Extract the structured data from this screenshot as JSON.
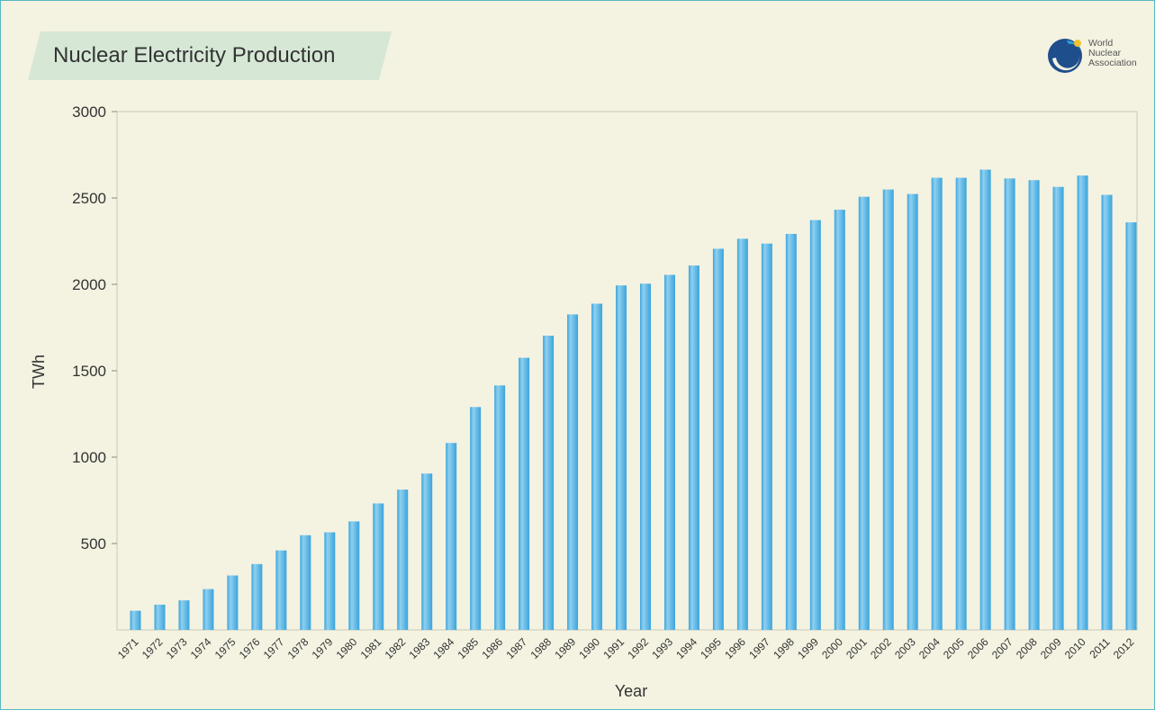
{
  "title": "Nuclear Electricity Production",
  "logo": {
    "lines": [
      "World",
      "Nuclear",
      "Association"
    ]
  },
  "colors": {
    "background": "#f4f2e1",
    "title_banner": "#d6e7d6",
    "bar": "#3aa4db",
    "bar_highlight": "#8fd0f0",
    "frame_border": "#57b9c4",
    "gridline": "#d8d6c4"
  },
  "chart_data": {
    "type": "bar",
    "title": "Nuclear Electricity Production",
    "xlabel": "Year",
    "ylabel": "TWh",
    "ylim": [
      0,
      3000
    ],
    "yticks": [
      500,
      1000,
      1500,
      2000,
      2500,
      3000
    ],
    "grid": false,
    "legend": "none",
    "categories": [
      "1971",
      "1972",
      "1973",
      "1974",
      "1975",
      "1976",
      "1977",
      "1978",
      "1979",
      "1980",
      "1981",
      "1982",
      "1983",
      "1984",
      "1985",
      "1986",
      "1987",
      "1988",
      "1989",
      "1990",
      "1991",
      "1992",
      "1993",
      "1994",
      "1995",
      "1996",
      "1997",
      "1998",
      "1999",
      "2000",
      "2001",
      "2002",
      "2003",
      "2004",
      "2005",
      "2006",
      "2007",
      "2008",
      "2009",
      "2010",
      "2011",
      "2012"
    ],
    "values": [
      111,
      146,
      171,
      236,
      315,
      381,
      460,
      548,
      565,
      628,
      732,
      812,
      905,
      1082,
      1290,
      1415,
      1575,
      1703,
      1826,
      1888,
      1994,
      2004,
      2055,
      2109,
      2206,
      2264,
      2236,
      2292,
      2372,
      2432,
      2507,
      2549,
      2523,
      2617,
      2617,
      2664,
      2613,
      2603,
      2564,
      2630,
      2518,
      2359
    ]
  }
}
